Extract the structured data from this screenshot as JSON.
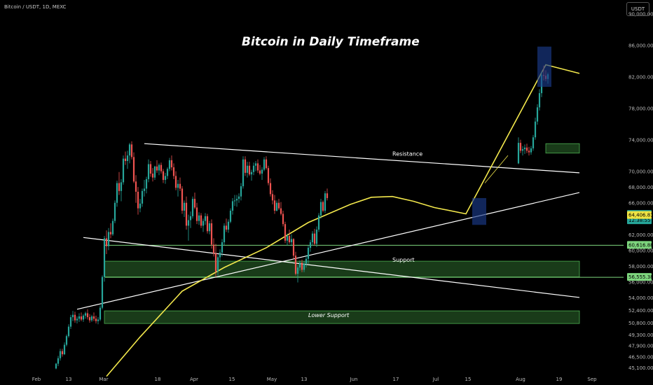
{
  "header": {
    "symbol": "Bitcoin / USDT, 1D, MEXC",
    "currency_button": "USDT"
  },
  "chart_data": {
    "type": "candlestick",
    "title": "Bitcoin in Daily Timeframe",
    "ylim": [
      44500,
      91000
    ],
    "x_ticks": [
      "Feb",
      "13",
      "Mar",
      "18",
      "Apr",
      "15",
      "May",
      "13",
      "Jun",
      "17",
      "Jul",
      "15",
      "Aug",
      "19",
      "Sep"
    ],
    "y_ticks": [
      90000,
      86000,
      82000,
      78000,
      74000,
      70000,
      68000,
      66000,
      62000,
      60000,
      58000,
      56000,
      54000,
      52400,
      50800,
      49300,
      47900,
      46500,
      45100
    ],
    "y_tick_labels": [
      "90,000.00",
      "86,000.00",
      "82,000.00",
      "78,000.00",
      "74,000.00",
      "70,000.00",
      "68,000.00",
      "66,000.00",
      "62,000.00",
      "60,000.00",
      "58,000.00",
      "56,000.00",
      "54,000.00",
      "52,400.00",
      "50,800.00",
      "49,300.00",
      "47,900.00",
      "46,500.00",
      "45,100.00"
    ],
    "price_labels": [
      {
        "value": 64544.03,
        "text": "64,544.03",
        "sub": "12:38:55",
        "color": "#26a69a"
      },
      {
        "value": 64406.81,
        "text": "64,406.81",
        "color": "#f0e442"
      },
      {
        "value": 60616.88,
        "text": "60,616.88",
        "color": "#7ed67e"
      },
      {
        "value": 56555.38,
        "text": "56,555.38",
        "color": "#7ed67e"
      }
    ],
    "annotations": [
      {
        "text": "Resistance",
        "day": 160,
        "value": 71950
      },
      {
        "text": "Support",
        "day": 160,
        "value": 58500
      },
      {
        "text": "Lower Support",
        "day": 120,
        "value": 51500
      }
    ],
    "zones": [
      {
        "day0": 23,
        "day1": 249,
        "ylow": 56600,
        "yhigh": 58600
      },
      {
        "day0": 23,
        "day1": 249,
        "ylow": 50700,
        "yhigh": 52300
      },
      {
        "day0": 233,
        "day1": 249,
        "ylow": 72300,
        "yhigh": 73500
      }
    ],
    "hlines": [
      60616.88,
      56555.38
    ],
    "trendlines": [
      {
        "name": "Resistance",
        "points": [
          [
            42,
            73500
          ],
          [
            249,
            69800
          ]
        ],
        "color": "#ffffff"
      },
      {
        "name": "Support",
        "points": [
          [
            13,
            61600
          ],
          [
            249,
            54000
          ]
        ],
        "color": "#ffffff"
      },
      {
        "name": "Rising",
        "points": [
          [
            10,
            52500
          ],
          [
            249,
            67300
          ]
        ],
        "color": "#ffffff"
      }
    ],
    "ma_points": [
      [
        24,
        44000
      ],
      [
        40,
        49000
      ],
      [
        60,
        54800
      ],
      [
        80,
        57800
      ],
      [
        100,
        60300
      ],
      [
        120,
        63500
      ],
      [
        140,
        65800
      ],
      [
        150,
        66700
      ],
      [
        160,
        66800
      ],
      [
        170,
        66200
      ],
      [
        180,
        65400
      ],
      [
        195,
        64600
      ],
      [
        233,
        83500
      ],
      [
        249,
        82400
      ]
    ],
    "candles": [
      [
        0,
        45000,
        45700,
        44900,
        45600
      ],
      [
        1,
        45600,
        46600,
        45300,
        46300
      ],
      [
        2,
        46300,
        47500,
        46000,
        47200
      ],
      [
        3,
        47200,
        47500,
        46500,
        46800
      ],
      [
        4,
        46800,
        48300,
        46700,
        48000
      ],
      [
        5,
        48000,
        49300,
        47800,
        49100
      ],
      [
        6,
        49100,
        50600,
        48900,
        50300
      ],
      [
        7,
        50300,
        51800,
        50000,
        51500
      ],
      [
        8,
        51500,
        52300,
        51000,
        51800
      ],
      [
        9,
        51800,
        52200,
        50800,
        51100
      ],
      [
        10,
        51100,
        51600,
        50700,
        51300
      ],
      [
        11,
        51300,
        52000,
        50900,
        51600
      ],
      [
        12,
        51600,
        52100,
        51000,
        51200
      ],
      [
        13,
        51200,
        51900,
        50900,
        51700
      ],
      [
        14,
        51700,
        52200,
        51300,
        52000
      ],
      [
        15,
        52000,
        52500,
        51200,
        51500
      ],
      [
        16,
        51500,
        51900,
        50800,
        51100
      ],
      [
        17,
        51100,
        51800,
        50900,
        51600
      ],
      [
        18,
        51600,
        52100,
        51000,
        51300
      ],
      [
        19,
        51300,
        51700,
        50700,
        51000
      ],
      [
        20,
        51000,
        51500,
        50600,
        51200
      ],
      [
        21,
        51200,
        53000,
        51000,
        52700
      ],
      [
        22,
        52700,
        56800,
        52500,
        56600
      ],
      [
        23,
        56600,
        61800,
        56000,
        61500
      ],
      [
        24,
        61500,
        62500,
        59500,
        60500
      ],
      [
        25,
        60500,
        62800,
        60000,
        62300
      ],
      [
        26,
        62300,
        63400,
        61500,
        62000
      ],
      [
        27,
        62000,
        64000,
        61800,
        63700
      ],
      [
        28,
        63700,
        66300,
        63400,
        66000
      ],
      [
        29,
        66000,
        68800,
        65500,
        68500
      ],
      [
        30,
        68500,
        69900,
        67000,
        67500
      ],
      [
        31,
        67500,
        69000,
        66200,
        68600
      ],
      [
        32,
        68600,
        72000,
        68300,
        71600
      ],
      [
        33,
        71600,
        72500,
        70800,
        71300
      ],
      [
        34,
        71300,
        72600,
        70300,
        72000
      ],
      [
        35,
        72000,
        73600,
        71000,
        73400
      ],
      [
        36,
        73400,
        73800,
        71500,
        71800
      ],
      [
        37,
        71800,
        72400,
        68500,
        68700
      ],
      [
        38,
        68700,
        69500,
        66000,
        67400
      ],
      [
        39,
        67400,
        68000,
        64500,
        65300
      ],
      [
        40,
        65300,
        66500,
        64800,
        65900
      ],
      [
        41,
        65900,
        67800,
        65500,
        67500
      ],
      [
        42,
        67500,
        68900,
        66800,
        67800
      ],
      [
        43,
        67800,
        69300,
        67200,
        69000
      ],
      [
        44,
        69000,
        71500,
        68600,
        70900
      ],
      [
        45,
        70900,
        71300,
        69300,
        69700
      ],
      [
        46,
        69700,
        70400,
        68700,
        69200
      ],
      [
        47,
        69200,
        70700,
        68900,
        70600
      ],
      [
        48,
        70600,
        71400,
        69800,
        70100
      ],
      [
        49,
        70100,
        71000,
        69500,
        70800
      ],
      [
        50,
        70800,
        71100,
        69700,
        70000
      ],
      [
        51,
        70000,
        70300,
        68500,
        68900
      ],
      [
        52,
        68900,
        69800,
        68400,
        69400
      ],
      [
        53,
        69400,
        70500,
        69000,
        70300
      ],
      [
        54,
        70300,
        71700,
        70000,
        71400
      ],
      [
        55,
        71400,
        72000,
        70100,
        70500
      ],
      [
        56,
        70500,
        71000,
        69000,
        69400
      ],
      [
        57,
        69400,
        70000,
        67600,
        67900
      ],
      [
        58,
        67900,
        68900,
        66800,
        68400
      ],
      [
        59,
        68400,
        69200,
        67500,
        67800
      ],
      [
        60,
        67800,
        68100,
        64600,
        65000
      ],
      [
        61,
        65000,
        66300,
        64200,
        66000
      ],
      [
        62,
        66000,
        66800,
        62600,
        63100
      ],
      [
        63,
        63100,
        64500,
        61200,
        63800
      ],
      [
        64,
        63800,
        64900,
        62800,
        64300
      ],
      [
        65,
        64300,
        66800,
        64000,
        66500
      ],
      [
        66,
        66500,
        67300,
        65200,
        65400
      ],
      [
        67,
        65400,
        66000,
        63300,
        63700
      ],
      [
        68,
        63700,
        64800,
        63200,
        64400
      ],
      [
        69,
        64400,
        64700,
        62800,
        63100
      ],
      [
        70,
        63100,
        64000,
        62300,
        63700
      ],
      [
        71,
        63700,
        64700,
        63200,
        64300
      ],
      [
        72,
        64300,
        64600,
        62100,
        62400
      ],
      [
        73,
        62400,
        63700,
        62000,
        63400
      ],
      [
        74,
        63400,
        63900,
        60200,
        60700
      ],
      [
        75,
        60700,
        61500,
        59200,
        59600
      ],
      [
        76,
        59600,
        60800,
        56600,
        57300
      ],
      [
        77,
        57300,
        59400,
        56800,
        59100
      ],
      [
        78,
        59100,
        60100,
        58600,
        59700
      ],
      [
        79,
        59700,
        61400,
        59200,
        61000
      ],
      [
        80,
        61000,
        63400,
        60600,
        63100
      ],
      [
        81,
        63100,
        64000,
        62300,
        62600
      ],
      [
        82,
        62600,
        63900,
        62200,
        63600
      ],
      [
        83,
        63600,
        65300,
        63400,
        65000
      ],
      [
        84,
        65000,
        66600,
        64500,
        66200
      ],
      [
        85,
        66200,
        67000,
        65600,
        66300
      ],
      [
        86,
        66300,
        67000,
        65500,
        66500
      ],
      [
        87,
        66500,
        67200,
        66000,
        66800
      ],
      [
        88,
        66800,
        68500,
        66300,
        68100
      ],
      [
        89,
        68100,
        71900,
        67800,
        71500
      ],
      [
        90,
        71500,
        71900,
        69400,
        69800
      ],
      [
        91,
        69800,
        71200,
        69200,
        70700
      ],
      [
        92,
        70700,
        71200,
        69400,
        69600
      ],
      [
        93,
        69600,
        70200,
        68800,
        69900
      ],
      [
        94,
        69900,
        71100,
        69500,
        70700
      ],
      [
        95,
        70700,
        71300,
        70000,
        71000
      ],
      [
        96,
        71000,
        71500,
        69800,
        70100
      ],
      [
        97,
        70100,
        70800,
        69500,
        69700
      ],
      [
        98,
        69700,
        70500,
        68900,
        70200
      ],
      [
        99,
        70200,
        71800,
        70000,
        71500
      ],
      [
        100,
        71500,
        71900,
        70200,
        70400
      ],
      [
        101,
        70400,
        70700,
        68200,
        68500
      ],
      [
        102,
        68500,
        69100,
        66800,
        67100
      ],
      [
        103,
        67100,
        67600,
        65800,
        66300
      ],
      [
        104,
        66300,
        67000,
        64600,
        65000
      ],
      [
        105,
        65000,
        66300,
        64900,
        66000
      ],
      [
        106,
        66000,
        66500,
        65100,
        65300
      ],
      [
        107,
        65300,
        66100,
        64400,
        64600
      ],
      [
        108,
        64600,
        65000,
        63000,
        63300
      ],
      [
        109,
        63300,
        63600,
        60900,
        61200
      ],
      [
        110,
        61200,
        62100,
        60600,
        61800
      ],
      [
        111,
        61800,
        62600,
        60800,
        61000
      ],
      [
        112,
        61000,
        62000,
        60500,
        61400
      ],
      [
        113,
        61400,
        61500,
        58900,
        59300
      ],
      [
        114,
        59300,
        59800,
        56800,
        57000
      ],
      [
        115,
        57000,
        58100,
        55900,
        57800
      ],
      [
        116,
        57800,
        58700,
        57400,
        58400
      ],
      [
        117,
        58400,
        58800,
        57200,
        57500
      ],
      [
        118,
        57500,
        58600,
        57200,
        58300
      ],
      [
        119,
        58300,
        59400,
        57800,
        58900
      ],
      [
        120,
        58900,
        60600,
        58300,
        60300
      ],
      [
        121,
        60300,
        61300,
        59800,
        61000
      ],
      [
        122,
        61000,
        62400,
        60600,
        62100
      ],
      [
        123,
        62100,
        62700,
        60600,
        60800
      ],
      [
        124,
        60800,
        63000,
        60400,
        62600
      ],
      [
        125,
        62600,
        64700,
        62300,
        64400
      ],
      [
        126,
        64400,
        66500,
        64000,
        66100
      ],
      [
        127,
        66100,
        66300,
        64800,
        65000
      ],
      [
        128,
        65000,
        67500,
        64700,
        67200
      ],
      [
        129,
        67200,
        67800,
        66300,
        66600
      ]
    ],
    "recent_candles": [
      [
        220,
        71000,
        74300,
        70900,
        73600
      ],
      [
        221,
        73600,
        74000,
        72300,
        72600
      ],
      [
        222,
        72600,
        73200,
        72000,
        72800
      ],
      [
        223,
        72800,
        73400,
        72200,
        73000
      ],
      [
        224,
        73000,
        73500,
        72300,
        72600
      ],
      [
        225,
        72600,
        73100,
        72000,
        72400
      ],
      [
        226,
        72400,
        73200,
        72100,
        72900
      ],
      [
        227,
        72900,
        74600,
        72600,
        74300
      ],
      [
        228,
        74300,
        76800,
        74000,
        76300
      ],
      [
        229,
        76300,
        78500,
        75900,
        78100
      ],
      [
        230,
        78100,
        80400,
        77700,
        79900
      ],
      [
        231,
        79900,
        82600,
        79400,
        82200
      ],
      [
        232,
        82200,
        83400,
        81500,
        82100
      ],
      [
        233,
        82100,
        82800,
        81400,
        81700
      ],
      [
        234,
        81700,
        82500,
        81100,
        82300
      ]
    ]
  }
}
